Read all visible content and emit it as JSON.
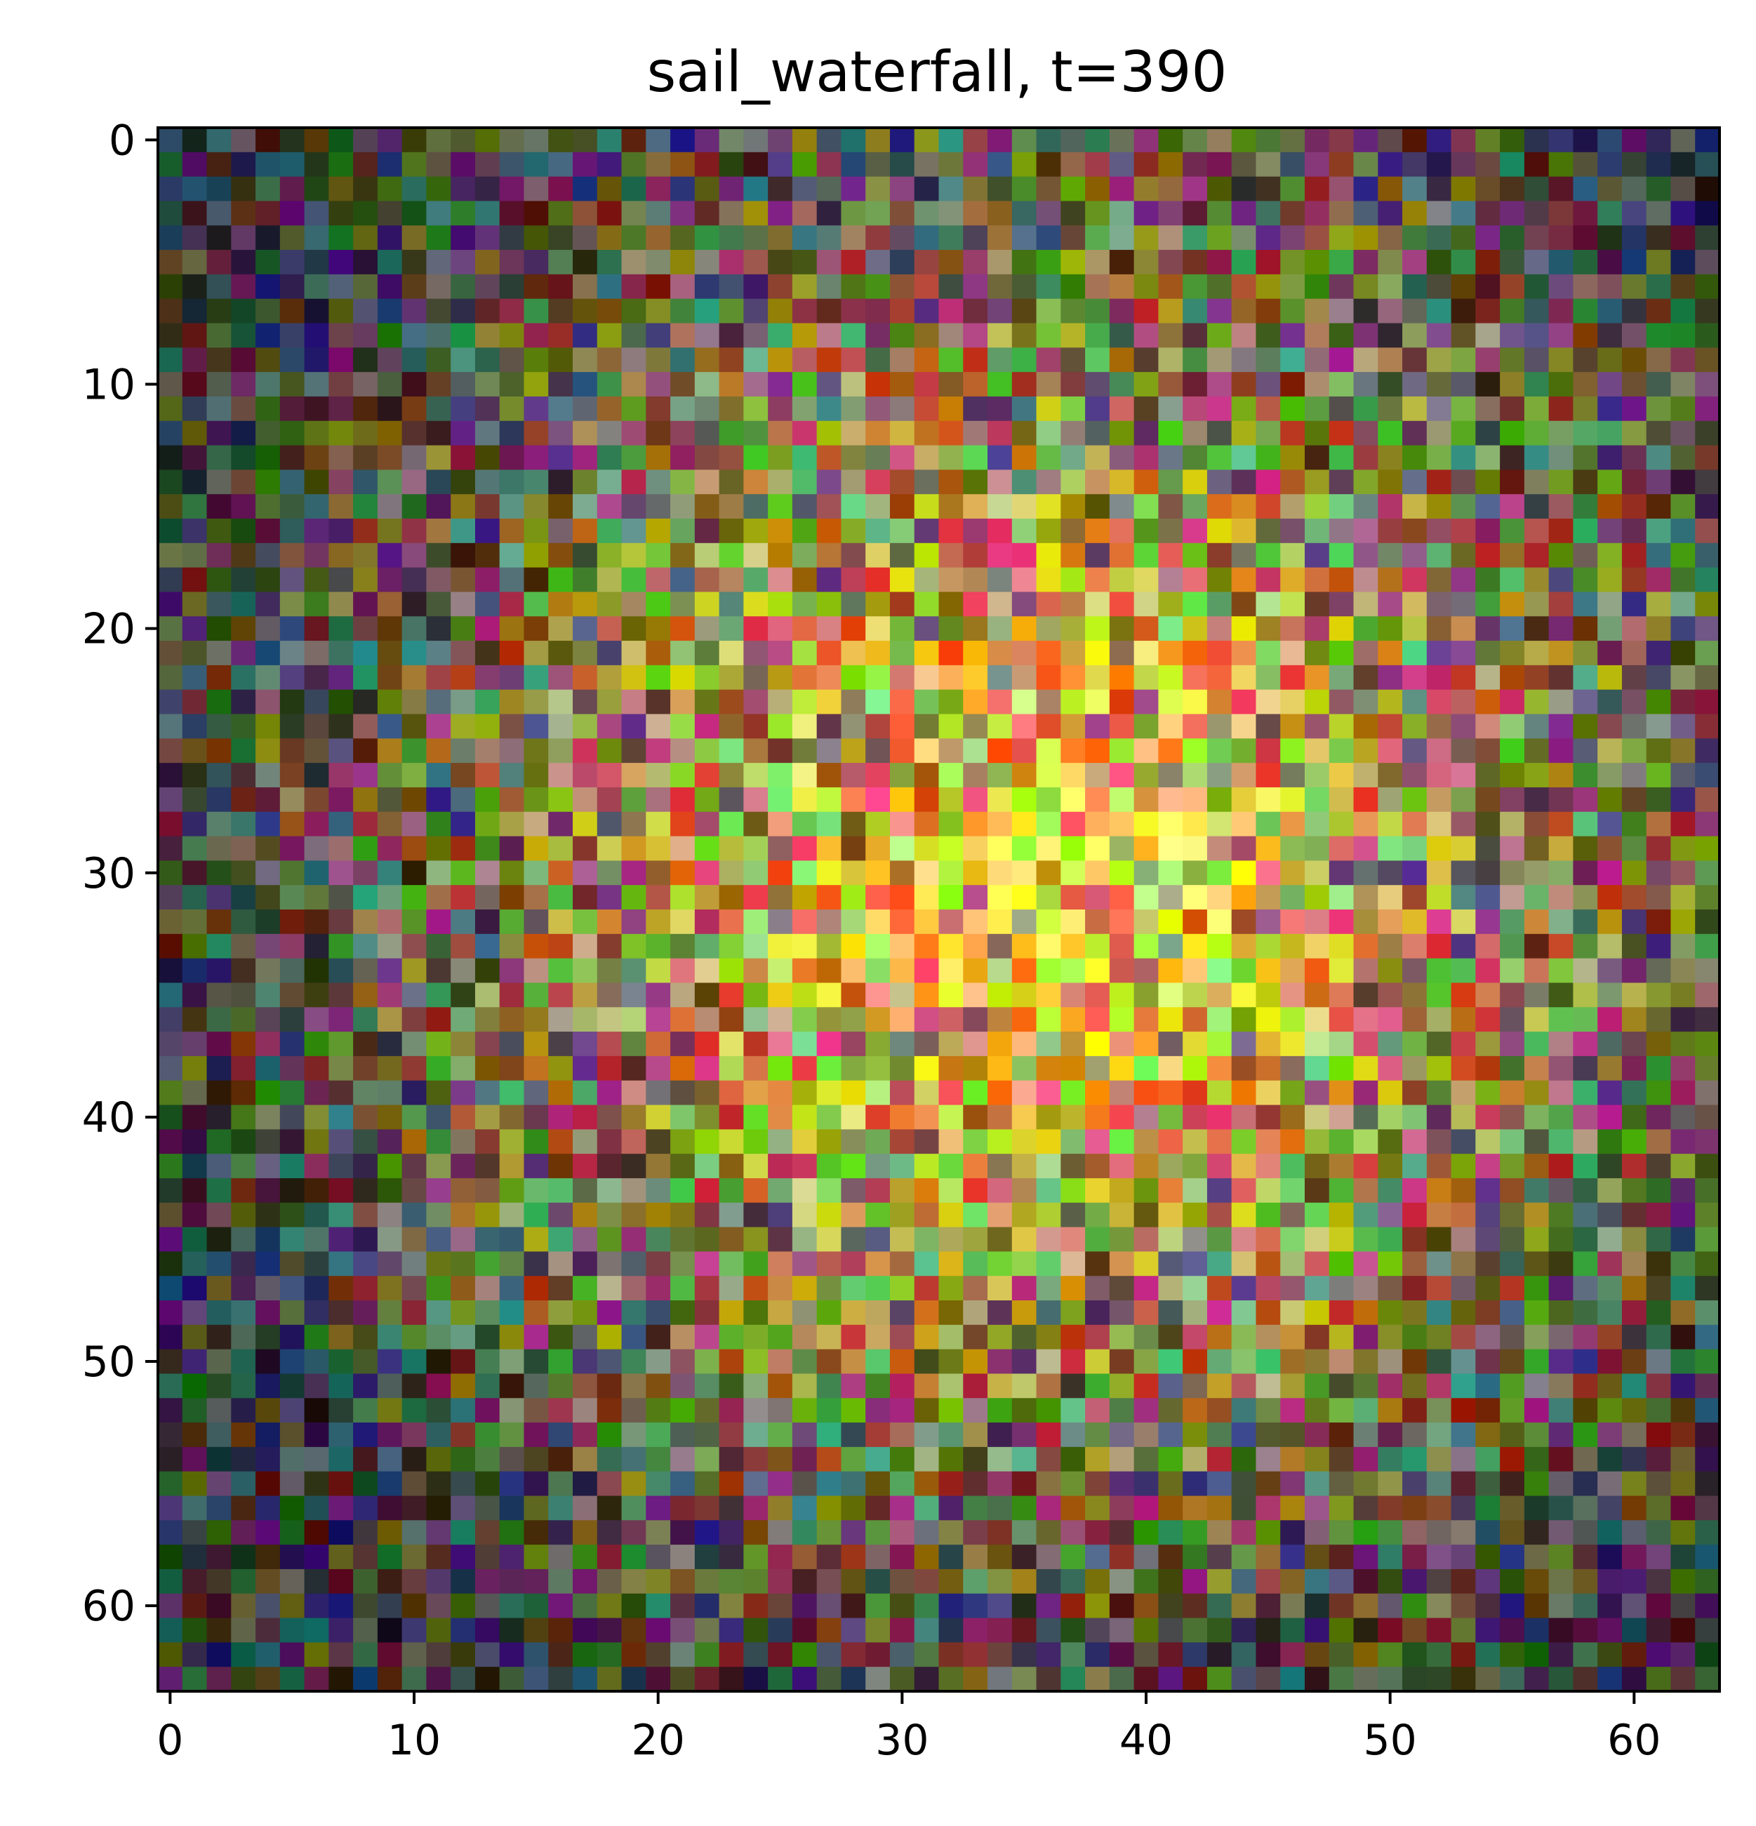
{
  "chart_data": {
    "type": "heatmap",
    "title": "sail_waterfall, t=390",
    "xlabel": "",
    "ylabel": "",
    "image_shape": [
      64,
      64
    ],
    "xlim": [
      -0.5,
      63.5
    ],
    "ylim": [
      63.5,
      -0.5
    ],
    "y_axis_inverted": true,
    "grid": false,
    "colorbar": false,
    "x_ticks": [
      0,
      10,
      20,
      30,
      40,
      50,
      60
    ],
    "x_tick_labels": [
      "0",
      "10",
      "20",
      "30",
      "40",
      "50",
      "60"
    ],
    "y_ticks": [
      0,
      10,
      20,
      30,
      40,
      50,
      60
    ],
    "y_tick_labels": [
      "0",
      "10",
      "20",
      "30",
      "40",
      "50",
      "60"
    ],
    "pixel_model": {
      "description": "64x64 RGB noise image; brighter warm tones in the centre/upper-right, darker tones toward the left and bottom edges",
      "seed": 390,
      "bright_center": [
        30,
        36
      ],
      "edge_darkening": true
    }
  },
  "colors": {
    "axes_frame": "#000000",
    "background": "#ffffff",
    "tick_color": "#000000"
  }
}
